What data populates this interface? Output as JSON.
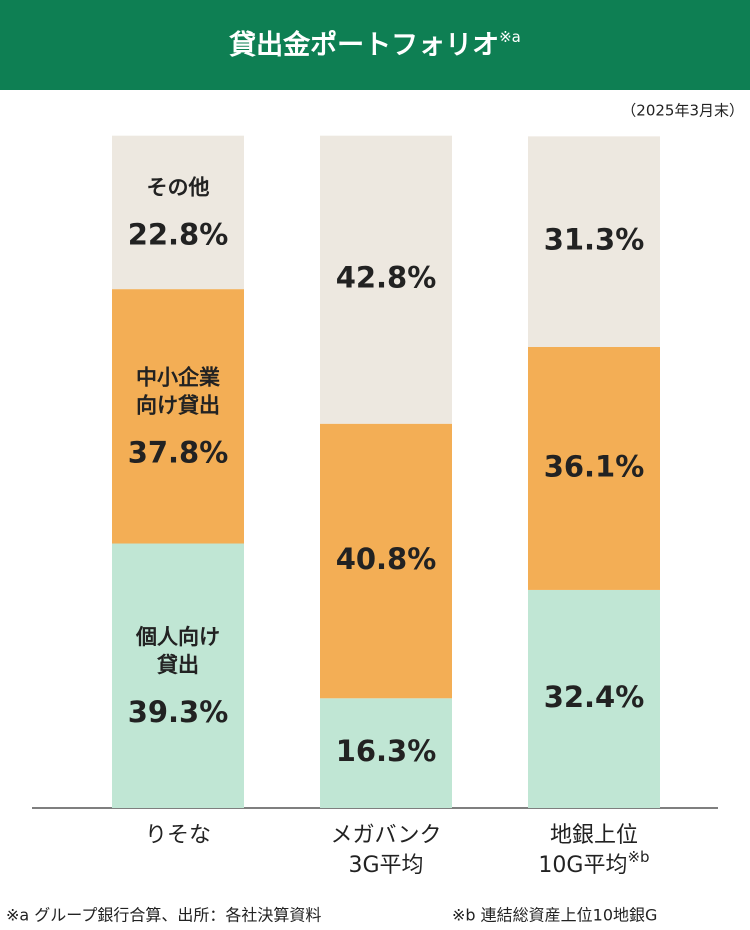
{
  "chart_data": {
    "type": "stacked_bar",
    "title": "貸出金ポートフォリオ",
    "title_note": "※a",
    "subtitle": "（2025年3月末）",
    "header_color": "#0e7f53",
    "categories": [
      {
        "lines": [
          "りそな"
        ]
      },
      {
        "lines": [
          "メガバンク",
          "3G平均"
        ]
      },
      {
        "lines": [
          "地銀上位",
          "10G平均"
        ],
        "note": "※b"
      }
    ],
    "ylim": [
      0,
      100
    ],
    "series": [
      {
        "name": [
          "個人向け",
          "貸出"
        ],
        "color": "#c0e6d4",
        "values": [
          39.3,
          16.3,
          32.4
        ],
        "value_labels": [
          "39.3%",
          "16.3%",
          "32.4%"
        ]
      },
      {
        "name": [
          "中小企業",
          "向け貸出"
        ],
        "color": "#f3ae55",
        "values": [
          37.8,
          40.8,
          36.1
        ],
        "value_labels": [
          "37.8%",
          "40.8%",
          "36.1%"
        ]
      },
      {
        "name": [
          "その他"
        ],
        "color": "#ede8e0",
        "values": [
          22.8,
          42.8,
          31.3
        ],
        "value_labels": [
          "22.8%",
          "42.8%",
          "31.3%"
        ]
      }
    ],
    "footnotes": [
      "※a グループ銀行合算、出所：各社決算資料",
      "※b 連結総資産上位10地銀G"
    ]
  }
}
